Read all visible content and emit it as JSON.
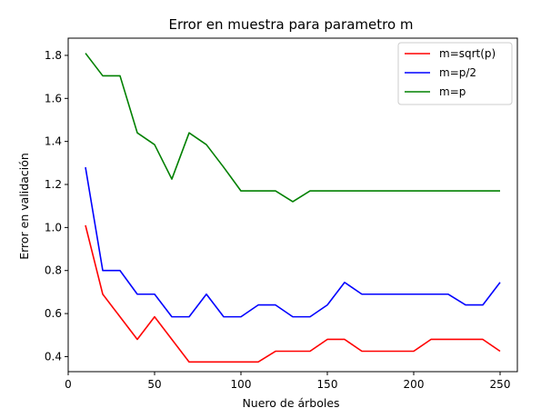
{
  "chart_data": {
    "type": "line",
    "title": "Error en muestra para parametro m",
    "xlabel": "Nuero de árboles",
    "ylabel": "Error en validación",
    "xlim": [
      0,
      260
    ],
    "ylim": [
      0.33,
      1.88
    ],
    "xticks": [
      0,
      50,
      100,
      150,
      200,
      250
    ],
    "yticks": [
      0.4,
      0.6,
      0.8,
      1.0,
      1.2,
      1.4,
      1.6,
      1.8
    ],
    "grid": false,
    "legend_position": "top-right",
    "x": [
      10,
      20,
      30,
      40,
      50,
      60,
      70,
      80,
      90,
      100,
      110,
      120,
      130,
      140,
      150,
      160,
      170,
      180,
      190,
      200,
      210,
      220,
      230,
      240,
      250
    ],
    "series": [
      {
        "name": "m=sqrt(p)",
        "color": "#ff0000",
        "values": [
          1.01,
          0.69,
          0.585,
          0.48,
          0.585,
          0.48,
          0.375,
          0.375,
          0.375,
          0.375,
          0.375,
          0.425,
          0.425,
          0.425,
          0.48,
          0.48,
          0.425,
          0.425,
          0.425,
          0.425,
          0.48,
          0.48,
          0.48,
          0.48,
          0.425
        ]
      },
      {
        "name": "m=p/2",
        "color": "#0000ff",
        "values": [
          1.28,
          0.8,
          0.8,
          0.69,
          0.69,
          0.585,
          0.585,
          0.69,
          0.585,
          0.585,
          0.64,
          0.64,
          0.585,
          0.585,
          0.64,
          0.745,
          0.69,
          0.69,
          0.69,
          0.69,
          0.69,
          0.69,
          0.64,
          0.64,
          0.745
        ]
      },
      {
        "name": "m=p",
        "color": "#008000",
        "values": [
          1.81,
          1.705,
          1.705,
          1.44,
          1.385,
          1.225,
          1.44,
          1.385,
          1.28,
          1.17,
          1.17,
          1.17,
          1.12,
          1.17,
          1.17,
          1.17,
          1.17,
          1.17,
          1.17,
          1.17,
          1.17,
          1.17,
          1.17,
          1.17,
          1.17
        ]
      }
    ]
  }
}
